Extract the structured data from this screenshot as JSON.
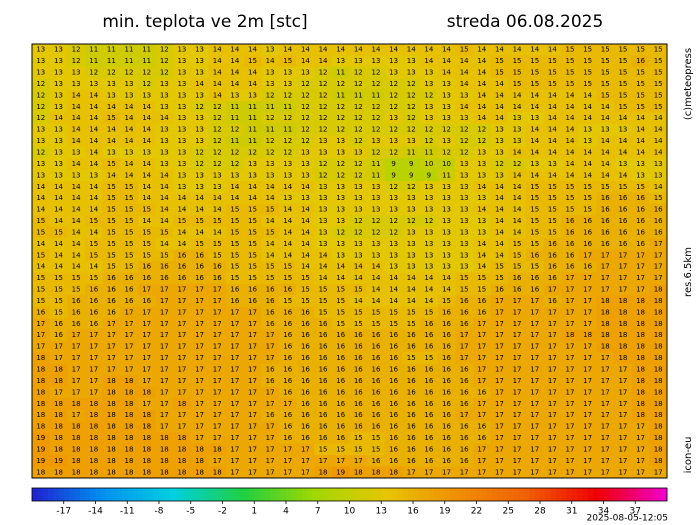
{
  "title": "min. teplota ve 2m [stc]",
  "date": "streda 06.08.2025",
  "credit": "(c)meteopress",
  "resolution": "res.6.5km",
  "model": "icon-eu",
  "timestamp": "2025-08-05-12:05",
  "colorbar": {
    "lim": [
      -20,
      40
    ],
    "ticks": [
      -17,
      -14,
      -11,
      -8,
      -5,
      -2,
      1,
      4,
      7,
      10,
      13,
      16,
      19,
      22,
      25,
      28,
      31,
      34,
      37
    ],
    "colors": [
      "#2020d0",
      "#0090f0",
      "#00d0e0",
      "#20d040",
      "#a0d800",
      "#e6c600",
      "#f09000",
      "#f06000",
      "#f00000",
      "#f000d0"
    ]
  },
  "grid": [
    [
      13,
      13,
      12,
      11,
      11,
      11,
      11,
      12,
      13,
      13,
      14,
      14,
      14,
      13,
      14,
      14,
      14,
      14,
      14,
      14,
      14,
      14,
      14,
      14,
      15,
      14,
      14,
      14,
      14,
      14,
      15,
      15,
      15,
      15,
      15,
      15
    ],
    [
      13,
      13,
      12,
      11,
      11,
      11,
      11,
      12,
      13,
      13,
      14,
      14,
      15,
      14,
      15,
      14,
      14,
      13,
      13,
      13,
      13,
      13,
      14,
      14,
      14,
      14,
      15,
      15,
      15,
      15,
      15,
      15,
      15,
      15,
      16,
      15
    ],
    [
      13,
      13,
      13,
      12,
      12,
      12,
      12,
      12,
      13,
      13,
      14,
      14,
      14,
      13,
      13,
      13,
      12,
      11,
      12,
      12,
      13,
      13,
      13,
      14,
      14,
      14,
      15,
      15,
      15,
      15,
      15,
      15,
      15,
      15,
      15,
      15
    ],
    [
      12,
      13,
      13,
      13,
      13,
      13,
      12,
      13,
      13,
      14,
      14,
      14,
      14,
      13,
      13,
      12,
      12,
      12,
      12,
      12,
      12,
      12,
      13,
      13,
      14,
      14,
      14,
      15,
      15,
      15,
      15,
      15,
      15,
      15,
      15,
      15
    ],
    [
      12,
      13,
      14,
      14,
      13,
      13,
      13,
      13,
      13,
      13,
      14,
      13,
      13,
      12,
      12,
      12,
      12,
      11,
      11,
      11,
      12,
      12,
      12,
      13,
      13,
      14,
      14,
      14,
      14,
      14,
      14,
      14,
      15,
      15,
      15,
      15
    ],
    [
      12,
      13,
      14,
      14,
      14,
      14,
      14,
      13,
      13,
      12,
      12,
      11,
      11,
      11,
      11,
      12,
      12,
      12,
      12,
      12,
      12,
      12,
      13,
      13,
      14,
      14,
      14,
      14,
      14,
      14,
      14,
      14,
      14,
      15,
      15,
      15
    ],
    [
      12,
      14,
      14,
      14,
      15,
      14,
      14,
      14,
      13,
      13,
      12,
      11,
      11,
      12,
      12,
      12,
      12,
      12,
      12,
      12,
      13,
      12,
      13,
      13,
      13,
      14,
      14,
      13,
      13,
      14,
      14,
      14,
      14,
      14,
      14,
      14
    ],
    [
      13,
      13,
      14,
      14,
      14,
      14,
      14,
      13,
      13,
      13,
      12,
      12,
      11,
      11,
      11,
      12,
      12,
      12,
      12,
      12,
      12,
      12,
      12,
      12,
      12,
      12,
      13,
      13,
      14,
      14,
      14,
      13,
      13,
      13,
      14,
      14
    ],
    [
      13,
      13,
      14,
      14,
      14,
      14,
      14,
      13,
      13,
      13,
      12,
      11,
      11,
      12,
      12,
      12,
      13,
      13,
      12,
      13,
      13,
      13,
      12,
      13,
      12,
      12,
      13,
      13,
      14,
      14,
      14,
      13,
      14,
      14,
      14,
      14
    ],
    [
      12,
      13,
      13,
      14,
      13,
      13,
      13,
      13,
      13,
      12,
      12,
      12,
      12,
      12,
      12,
      13,
      13,
      13,
      13,
      12,
      12,
      11,
      11,
      12,
      12,
      13,
      13,
      14,
      14,
      14,
      14,
      14,
      14,
      14,
      14,
      14
    ],
    [
      13,
      13,
      14,
      14,
      15,
      14,
      14,
      13,
      13,
      12,
      12,
      12,
      13,
      13,
      13,
      13,
      12,
      12,
      12,
      11,
      9,
      9,
      10,
      10,
      13,
      13,
      12,
      12,
      13,
      13,
      14,
      14,
      14,
      13,
      13,
      13
    ],
    [
      13,
      13,
      13,
      13,
      14,
      14,
      14,
      14,
      13,
      13,
      13,
      13,
      13,
      13,
      13,
      13,
      12,
      12,
      12,
      11,
      9,
      9,
      9,
      11,
      13,
      13,
      13,
      14,
      14,
      14,
      14,
      14,
      14,
      14,
      13,
      13
    ],
    [
      14,
      14,
      14,
      14,
      15,
      15,
      14,
      14,
      13,
      13,
      13,
      14,
      14,
      14,
      14,
      14,
      13,
      13,
      13,
      13,
      12,
      12,
      13,
      13,
      13,
      14,
      14,
      14,
      15,
      15,
      15,
      15,
      15,
      15,
      15,
      14
    ],
    [
      14,
      14,
      14,
      14,
      15,
      15,
      14,
      14,
      14,
      14,
      14,
      14,
      14,
      14,
      13,
      13,
      13,
      13,
      13,
      13,
      13,
      13,
      13,
      13,
      13,
      13,
      14,
      14,
      15,
      15,
      15,
      15,
      16,
      16,
      16,
      15
    ],
    [
      14,
      14,
      14,
      14,
      15,
      15,
      15,
      14,
      14,
      14,
      14,
      15,
      15,
      15,
      14,
      14,
      13,
      13,
      13,
      13,
      13,
      13,
      13,
      13,
      13,
      14,
      14,
      14,
      15,
      15,
      15,
      15,
      16,
      16,
      16,
      16
    ],
    [
      15,
      14,
      14,
      15,
      15,
      15,
      14,
      14,
      15,
      15,
      15,
      15,
      15,
      14,
      14,
      14,
      13,
      13,
      12,
      12,
      12,
      12,
      12,
      13,
      13,
      13,
      14,
      14,
      15,
      15,
      16,
      16,
      16,
      16,
      16,
      16
    ],
    [
      15,
      15,
      14,
      14,
      15,
      15,
      15,
      15,
      14,
      14,
      14,
      15,
      15,
      15,
      14,
      14,
      13,
      12,
      12,
      12,
      12,
      13,
      13,
      13,
      13,
      13,
      14,
      14,
      15,
      15,
      16,
      16,
      16,
      16,
      16,
      16
    ],
    [
      14,
      14,
      14,
      15,
      15,
      15,
      15,
      14,
      14,
      15,
      15,
      15,
      15,
      14,
      14,
      14,
      13,
      13,
      13,
      13,
      13,
      13,
      13,
      13,
      13,
      14,
      14,
      15,
      15,
      16,
      16,
      16,
      16,
      16,
      16,
      17
    ],
    [
      15,
      14,
      14,
      15,
      15,
      15,
      15,
      15,
      16,
      16,
      15,
      15,
      15,
      14,
      14,
      14,
      14,
      13,
      13,
      13,
      13,
      13,
      13,
      13,
      13,
      14,
      14,
      15,
      16,
      16,
      16,
      17,
      17,
      17,
      17,
      17
    ],
    [
      14,
      14,
      14,
      14,
      15,
      15,
      16,
      16,
      16,
      16,
      16,
      15,
      15,
      15,
      15,
      14,
      14,
      14,
      14,
      14,
      13,
      13,
      13,
      13,
      13,
      14,
      15,
      15,
      15,
      16,
      16,
      16,
      17,
      17,
      17,
      17
    ],
    [
      15,
      15,
      15,
      15,
      16,
      16,
      16,
      16,
      16,
      16,
      16,
      15,
      15,
      15,
      15,
      15,
      14,
      14,
      14,
      14,
      14,
      14,
      14,
      14,
      15,
      15,
      15,
      16,
      16,
      16,
      17,
      17,
      17,
      17,
      17,
      17
    ],
    [
      15,
      15,
      15,
      16,
      16,
      16,
      17,
      17,
      17,
      17,
      17,
      16,
      16,
      16,
      16,
      15,
      15,
      15,
      15,
      14,
      14,
      14,
      14,
      14,
      15,
      15,
      16,
      16,
      16,
      17,
      17,
      17,
      17,
      17,
      17,
      18
    ],
    [
      15,
      15,
      16,
      16,
      16,
      16,
      16,
      17,
      17,
      17,
      17,
      16,
      16,
      16,
      15,
      15,
      15,
      15,
      14,
      14,
      14,
      14,
      14,
      15,
      16,
      16,
      17,
      17,
      17,
      16,
      17,
      17,
      18,
      18,
      18,
      18
    ],
    [
      16,
      15,
      16,
      16,
      16,
      17,
      17,
      17,
      17,
      17,
      17,
      17,
      17,
      16,
      16,
      16,
      15,
      15,
      15,
      15,
      15,
      15,
      15,
      16,
      16,
      16,
      17,
      17,
      17,
      17,
      17,
      17,
      18,
      18,
      18,
      18
    ],
    [
      17,
      16,
      16,
      16,
      17,
      17,
      17,
      17,
      17,
      17,
      17,
      17,
      17,
      16,
      16,
      16,
      16,
      15,
      15,
      15,
      15,
      15,
      16,
      16,
      16,
      17,
      17,
      17,
      17,
      17,
      17,
      17,
      18,
      18,
      18,
      18
    ],
    [
      17,
      16,
      17,
      17,
      17,
      17,
      17,
      17,
      17,
      17,
      17,
      17,
      17,
      17,
      16,
      16,
      16,
      16,
      16,
      16,
      16,
      16,
      16,
      16,
      17,
      17,
      17,
      17,
      17,
      17,
      18,
      18,
      18,
      18,
      18,
      18
    ],
    [
      17,
      17,
      17,
      17,
      17,
      17,
      17,
      17,
      17,
      17,
      17,
      17,
      17,
      17,
      16,
      16,
      16,
      16,
      16,
      16,
      16,
      16,
      16,
      16,
      17,
      17,
      17,
      17,
      17,
      17,
      17,
      17,
      18,
      18,
      18,
      18
    ],
    [
      18,
      17,
      17,
      17,
      17,
      17,
      17,
      17,
      17,
      17,
      17,
      17,
      17,
      17,
      16,
      16,
      16,
      16,
      16,
      16,
      16,
      15,
      15,
      16,
      17,
      17,
      17,
      17,
      17,
      17,
      17,
      17,
      17,
      18,
      18,
      18
    ],
    [
      18,
      18,
      17,
      17,
      17,
      17,
      17,
      17,
      17,
      17,
      17,
      17,
      17,
      16,
      16,
      16,
      16,
      16,
      16,
      16,
      16,
      16,
      16,
      16,
      16,
      17,
      17,
      17,
      17,
      17,
      17,
      17,
      17,
      17,
      18,
      18
    ],
    [
      18,
      18,
      17,
      17,
      18,
      18,
      17,
      17,
      17,
      17,
      17,
      17,
      17,
      16,
      16,
      16,
      16,
      16,
      16,
      16,
      16,
      16,
      16,
      16,
      16,
      17,
      17,
      17,
      17,
      17,
      17,
      17,
      17,
      17,
      18,
      18
    ],
    [
      18,
      17,
      17,
      17,
      18,
      18,
      18,
      17,
      17,
      17,
      17,
      17,
      17,
      17,
      16,
      16,
      16,
      16,
      16,
      16,
      16,
      16,
      16,
      16,
      16,
      16,
      17,
      17,
      17,
      17,
      17,
      17,
      17,
      17,
      18,
      18
    ],
    [
      18,
      18,
      18,
      18,
      18,
      18,
      17,
      17,
      18,
      17,
      17,
      17,
      17,
      17,
      17,
      16,
      16,
      16,
      16,
      16,
      16,
      16,
      16,
      16,
      16,
      17,
      17,
      17,
      17,
      17,
      17,
      17,
      17,
      17,
      18,
      18
    ],
    [
      18,
      18,
      17,
      18,
      18,
      18,
      18,
      17,
      17,
      17,
      17,
      17,
      17,
      16,
      16,
      16,
      16,
      16,
      16,
      16,
      16,
      16,
      16,
      16,
      17,
      17,
      17,
      17,
      17,
      17,
      17,
      17,
      17,
      17,
      18,
      18
    ],
    [
      18,
      18,
      18,
      18,
      18,
      18,
      18,
      17,
      17,
      17,
      17,
      17,
      17,
      17,
      16,
      16,
      16,
      16,
      16,
      16,
      16,
      16,
      16,
      16,
      16,
      16,
      17,
      17,
      17,
      17,
      17,
      17,
      17,
      17,
      17,
      18
    ],
    [
      19,
      18,
      18,
      18,
      18,
      18,
      18,
      18,
      18,
      17,
      17,
      17,
      17,
      17,
      16,
      16,
      16,
      16,
      15,
      15,
      16,
      16,
      16,
      16,
      16,
      16,
      17,
      17,
      17,
      17,
      17,
      17,
      17,
      17,
      17,
      18
    ],
    [
      19,
      18,
      18,
      18,
      18,
      18,
      18,
      18,
      18,
      18,
      18,
      17,
      17,
      17,
      17,
      17,
      15,
      15,
      15,
      15,
      16,
      16,
      16,
      16,
      16,
      17,
      17,
      17,
      17,
      17,
      17,
      17,
      17,
      17,
      17,
      18
    ],
    [
      19,
      19,
      18,
      18,
      18,
      18,
      18,
      18,
      18,
      18,
      17,
      17,
      17,
      17,
      17,
      17,
      17,
      17,
      17,
      16,
      16,
      16,
      16,
      16,
      16,
      17,
      17,
      17,
      17,
      17,
      17,
      17,
      17,
      17,
      17,
      18
    ],
    [
      18,
      18,
      18,
      18,
      18,
      18,
      18,
      18,
      18,
      18,
      18,
      17,
      17,
      17,
      17,
      17,
      18,
      19,
      18,
      18,
      18,
      17,
      17,
      17,
      17,
      17,
      17,
      17,
      17,
      17,
      17,
      17,
      17,
      17,
      17,
      17
    ]
  ]
}
